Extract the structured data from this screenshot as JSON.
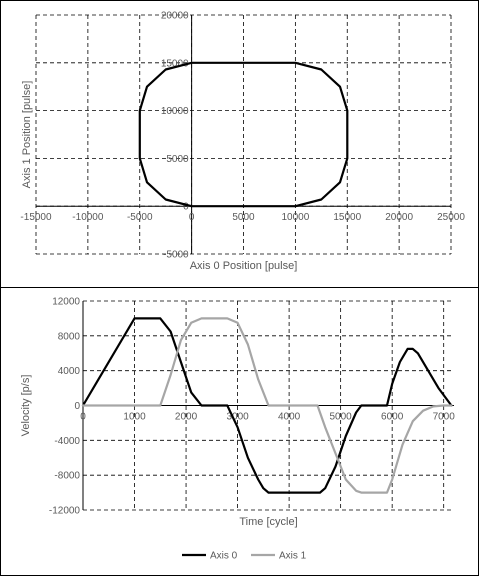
{
  "chart_data": [
    {
      "type": "scatter",
      "xlabel": "Axis 0 Position [pulse]",
      "ylabel": "Axis 1 Position [pulse]",
      "xlim": [
        -15000,
        25000
      ],
      "ylim": [
        -5000,
        20000
      ],
      "xticks": [
        "-15000",
        "-10000",
        "-5000",
        "0",
        "5000",
        "10000",
        "15000",
        "20000",
        "25000"
      ],
      "yticks": [
        "-5000",
        "0",
        "5000",
        "10000",
        "15000",
        "20000"
      ],
      "grid": "dashed",
      "series": [
        {
          "color": "#000000",
          "x": [
            0,
            10000,
            12500,
            14300,
            15000,
            15000,
            14300,
            12500,
            10000,
            0,
            -2500,
            -4300,
            -5000,
            -5000,
            -4300,
            -2500,
            0
          ],
          "y": [
            0,
            0,
            700,
            2500,
            5000,
            10000,
            12500,
            14300,
            15000,
            15000,
            14300,
            12500,
            10000,
            5000,
            2500,
            700,
            0
          ]
        }
      ]
    },
    {
      "type": "line",
      "xlabel": "Time [cycle]",
      "ylabel": "Velocity [p/s]",
      "xlim": [
        0,
        7200
      ],
      "ylim": [
        -12000,
        12000
      ],
      "xticks": [
        "0",
        "1000",
        "2000",
        "3000",
        "4000",
        "5000",
        "6000",
        "7000"
      ],
      "yticks": [
        "-12000",
        "-8000",
        "-4000",
        "0",
        "4000",
        "8000",
        "12000"
      ],
      "grid": "dashed",
      "legend_position": "bottom",
      "series": [
        {
          "name": "Axis 0",
          "color": "#000000",
          "x": [
            0,
            1000,
            1500,
            1700,
            1900,
            2100,
            2300,
            2800,
            3000,
            3200,
            3400,
            3500,
            3600,
            4600,
            4700,
            4900,
            5100,
            5300,
            5400,
            5900,
            6000,
            6150,
            6300,
            6400,
            6500,
            6700,
            6900,
            7150
          ],
          "y": [
            0,
            10000,
            10000,
            8500,
            5000,
            1500,
            0,
            0,
            -2500,
            -6000,
            -8500,
            -9500,
            -10000,
            -10000,
            -9500,
            -7000,
            -3500,
            -800,
            0,
            0,
            2500,
            5000,
            6500,
            6500,
            6000,
            4000,
            2000,
            0
          ]
        },
        {
          "name": "Axis 1",
          "color": "#a6a6a6",
          "x": [
            0,
            1500,
            1700,
            1900,
            2100,
            2300,
            2800,
            3000,
            3200,
            3400,
            3600,
            4550,
            4700,
            4900,
            5100,
            5300,
            5400,
            5900,
            6000,
            6200,
            6400,
            6600,
            6800,
            7000,
            7150
          ],
          "y": [
            0,
            0,
            3500,
            7500,
            9500,
            10000,
            10000,
            9500,
            7000,
            3000,
            0,
            0,
            -2500,
            -5500,
            -8500,
            -9800,
            -10000,
            -10000,
            -8500,
            -4500,
            -1800,
            -600,
            -100,
            0,
            0
          ]
        }
      ]
    }
  ]
}
